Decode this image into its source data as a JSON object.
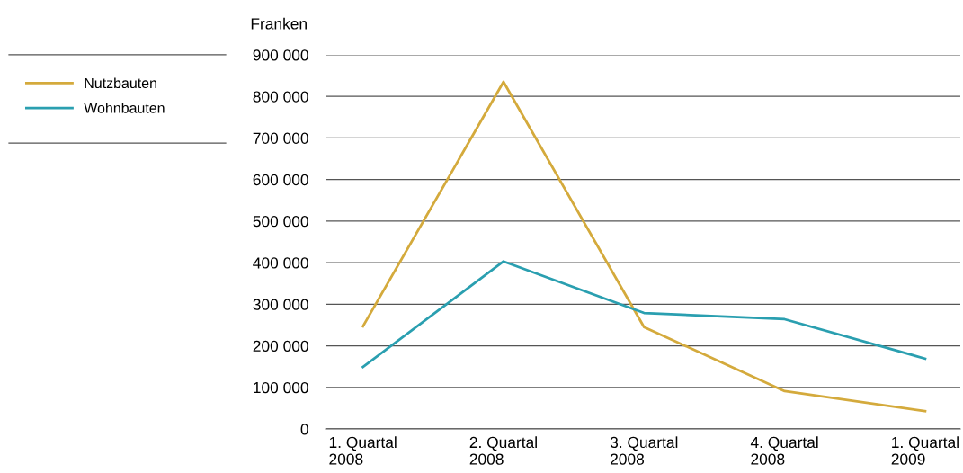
{
  "chart_data": {
    "type": "line",
    "ylabel": "Franken",
    "categories": [
      "1. Quartal\n2008",
      "2. Quartal\n2008",
      "3. Quartal\n2008",
      "4. Quartal\n2008",
      "1. Quartal\n2009"
    ],
    "series": [
      {
        "name": "Nutzbauten",
        "color": "#d4aa3c",
        "values": [
          247000,
          835000,
          245000,
          91000,
          43000
        ]
      },
      {
        "name": "Wohnbauten",
        "color": "#2a9fb0",
        "values": [
          149000,
          403000,
          279000,
          264000,
          169000
        ]
      }
    ],
    "ylim": [
      0,
      900000
    ],
    "yticks": [
      0,
      {
        "value": 100000,
        "label": "100 000"
      },
      {
        "value": 200000,
        "label": "200 000"
      },
      {
        "value": 300000,
        "label": "300 000"
      },
      {
        "value": 400000,
        "label": "400 000"
      },
      {
        "value": 500000,
        "label": "500 000"
      },
      {
        "value": 600000,
        "label": "600 000"
      },
      {
        "value": 700000,
        "label": "700 000"
      },
      {
        "value": 800000,
        "label": "800 000"
      },
      {
        "value": 900000,
        "label": "900 000"
      }
    ],
    "grid": "y",
    "legend": "left",
    "line_style": "solid",
    "marker": "none"
  }
}
